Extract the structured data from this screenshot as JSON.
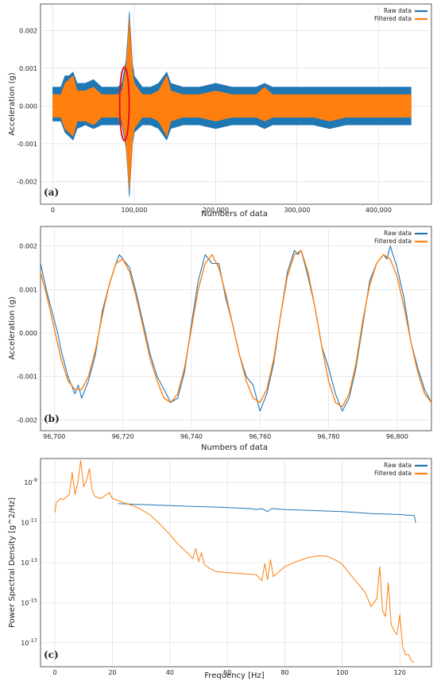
{
  "colors": {
    "raw": "#1f77b4",
    "filtered": "#ff7f0e",
    "highlight": "#e8121a",
    "grid": "#d9d9d9",
    "frame": "#333333"
  },
  "chart_data": [
    {
      "id": "a",
      "panel_label": "(a)",
      "type": "line",
      "title": "",
      "xlabel": "Numbers of data",
      "ylabel": "Acceleration (g)",
      "xlim": [
        -15000,
        465000
      ],
      "ylim": [
        -0.0026,
        0.0027
      ],
      "xticks": [
        0,
        100000,
        200000,
        300000,
        400000
      ],
      "xtick_labels": [
        "0",
        "100,000",
        "200,000",
        "300,000",
        "400,000"
      ],
      "yticks": [
        -0.002,
        -0.001,
        0.0,
        0.001,
        0.002
      ],
      "ytick_labels": [
        "-0.002",
        "-0.001",
        "0.000",
        "0.001",
        "0.002"
      ],
      "grid": true,
      "legend_position": "top-right",
      "annotation": "red ellipse around sample index ~88,000",
      "annotation_x": 88000,
      "annotation_y": [
        -0.00092,
        0.00103
      ],
      "series": [
        {
          "name": "Raw data",
          "color": "#1f77b4",
          "kind": "envelope",
          "x": [
            0,
            10000,
            15000,
            20000,
            25000,
            30000,
            40000,
            50000,
            60000,
            70000,
            80000,
            85000,
            90000,
            92000,
            94000,
            96000,
            98000,
            100000,
            110000,
            120000,
            130000,
            140000,
            145000,
            160000,
            180000,
            200000,
            220000,
            240000,
            250000,
            260000,
            270000,
            280000,
            300000,
            320000,
            340000,
            360000,
            380000,
            400000,
            420000,
            440000
          ],
          "upper": [
            0.0005,
            0.0005,
            0.0008,
            0.0008,
            0.0009,
            0.0006,
            0.0006,
            0.0007,
            0.0005,
            0.0005,
            0.0005,
            0.0006,
            0.0012,
            0.0018,
            0.0025,
            0.0018,
            0.0011,
            0.0008,
            0.0005,
            0.0005,
            0.0006,
            0.0009,
            0.0006,
            0.0005,
            0.0005,
            0.0006,
            0.0005,
            0.0005,
            0.0005,
            0.0006,
            0.0005,
            0.0005,
            0.0005,
            0.0005,
            0.0005,
            0.0005,
            0.0005,
            0.0005,
            0.0005,
            0.0005
          ],
          "lower": [
            -0.0004,
            -0.0004,
            -0.0007,
            -0.0008,
            -0.0009,
            -0.0006,
            -0.0005,
            -0.0006,
            -0.0005,
            -0.0005,
            -0.0005,
            -0.0005,
            -0.0011,
            -0.0017,
            -0.0024,
            -0.0017,
            -0.001,
            -0.0007,
            -0.0005,
            -0.0005,
            -0.0006,
            -0.0009,
            -0.0006,
            -0.0005,
            -0.0005,
            -0.0006,
            -0.0005,
            -0.0005,
            -0.0005,
            -0.0006,
            -0.0005,
            -0.0005,
            -0.0005,
            -0.0005,
            -0.0006,
            -0.0005,
            -0.0005,
            -0.0005,
            -0.0005,
            -0.0005
          ]
        },
        {
          "name": "Filtered data",
          "color": "#ff7f0e",
          "kind": "envelope",
          "x": [
            0,
            10000,
            15000,
            20000,
            25000,
            30000,
            40000,
            50000,
            60000,
            70000,
            80000,
            85000,
            90000,
            92000,
            94000,
            96000,
            98000,
            100000,
            110000,
            120000,
            130000,
            140000,
            145000,
            160000,
            180000,
            200000,
            220000,
            240000,
            250000,
            260000,
            270000,
            280000,
            300000,
            320000,
            340000,
            360000,
            380000,
            400000,
            420000,
            440000
          ],
          "upper": [
            0.0003,
            0.0003,
            0.0006,
            0.0007,
            0.0008,
            0.0004,
            0.0004,
            0.0005,
            0.0003,
            0.0003,
            0.0003,
            0.0004,
            0.001,
            0.0016,
            0.0023,
            0.0016,
            0.0009,
            0.0006,
            0.0003,
            0.0003,
            0.0004,
            0.0008,
            0.0004,
            0.0003,
            0.0003,
            0.0004,
            0.0003,
            0.0003,
            0.0003,
            0.0005,
            0.0003,
            0.0003,
            0.0003,
            0.0003,
            0.0003,
            0.0003,
            0.0003,
            0.0003,
            0.0003,
            0.0003
          ],
          "lower": [
            -0.0003,
            -0.0003,
            -0.0006,
            -0.0007,
            -0.0008,
            -0.0004,
            -0.0004,
            -0.0005,
            -0.0003,
            -0.0003,
            -0.0003,
            -0.0004,
            -0.001,
            -0.0016,
            -0.0022,
            -0.0016,
            -0.0009,
            -0.0006,
            -0.0003,
            -0.0003,
            -0.0004,
            -0.0008,
            -0.0004,
            -0.0003,
            -0.0003,
            -0.0004,
            -0.0003,
            -0.0003,
            -0.0003,
            -0.0004,
            -0.0003,
            -0.0003,
            -0.0003,
            -0.0003,
            -0.0004,
            -0.0003,
            -0.0003,
            -0.0003,
            -0.0003,
            -0.0003
          ]
        }
      ]
    },
    {
      "id": "b",
      "panel_label": "(b)",
      "type": "line",
      "title": "",
      "xlabel": "Numbers of data",
      "ylabel": "Acceleration (g)",
      "xlim": [
        96696,
        96810
      ],
      "ylim": [
        -0.00225,
        0.00245
      ],
      "xticks": [
        96700,
        96720,
        96740,
        96760,
        96780,
        96800
      ],
      "xtick_labels": [
        "96,700",
        "96,720",
        "96,740",
        "96,760",
        "96,780",
        "96,800"
      ],
      "yticks": [
        -0.002,
        -0.001,
        0.0,
        0.001,
        0.002
      ],
      "ytick_labels": [
        "-0.002",
        "-0.001",
        "0.000",
        "0.001",
        "0.002"
      ],
      "grid": true,
      "legend_position": "top-right",
      "series": [
        {
          "name": "Raw data",
          "color": "#1f77b4",
          "x": [
            96696,
            96698,
            96700,
            96701,
            96702,
            96704,
            96706,
            96707,
            96708,
            96710,
            96712,
            96714,
            96716,
            96718,
            96719,
            96720,
            96721,
            96722,
            96724,
            96726,
            96728,
            96730,
            96732,
            96734,
            96736,
            96738,
            96740,
            96742,
            96744,
            96745,
            96746,
            96748,
            96750,
            96752,
            96754,
            96756,
            96758,
            96760,
            96762,
            96764,
            96766,
            96768,
            96770,
            96771,
            96772,
            96774,
            96776,
            96778,
            96780,
            96782,
            96784,
            96786,
            96788,
            96790,
            96792,
            96794,
            96796,
            96797,
            96798,
            96800,
            96802,
            96804,
            96806,
            96808,
            96810
          ],
          "y": [
            0.0016,
            0.0009,
            0.0003,
            0.0,
            -0.0004,
            -0.001,
            -0.0014,
            -0.0012,
            -0.0015,
            -0.0011,
            -0.0005,
            0.0005,
            0.0011,
            0.0016,
            0.0018,
            0.0017,
            0.0016,
            0.0015,
            0.0009,
            0.0002,
            -0.0005,
            -0.001,
            -0.0013,
            -0.0016,
            -0.0015,
            -0.0009,
            0.0002,
            0.0012,
            0.0018,
            0.0017,
            0.0016,
            0.0016,
            0.0008,
            0.0002,
            -0.0005,
            -0.001,
            -0.0012,
            -0.0018,
            -0.0014,
            -0.0007,
            0.0004,
            0.0014,
            0.0019,
            0.0018,
            0.0019,
            0.0013,
            0.0006,
            -0.0003,
            -0.0008,
            -0.0014,
            -0.0018,
            -0.0015,
            -0.0008,
            0.0002,
            0.0012,
            0.0016,
            0.0018,
            0.0017,
            0.002,
            0.0015,
            0.0008,
            -0.0002,
            -0.0008,
            -0.0013,
            -0.0016
          ]
        },
        {
          "name": "Filtered data",
          "color": "#ff7f0e",
          "x": [
            96696,
            96698,
            96700,
            96702,
            96704,
            96706,
            96708,
            96710,
            96712,
            96714,
            96716,
            96718,
            96720,
            96722,
            96724,
            96726,
            96728,
            96730,
            96732,
            96734,
            96736,
            96738,
            96740,
            96742,
            96744,
            96746,
            96748,
            96750,
            96752,
            96754,
            96756,
            96758,
            96760,
            96762,
            96764,
            96766,
            96768,
            96770,
            96772,
            96774,
            96776,
            96778,
            96780,
            96782,
            96784,
            96786,
            96788,
            96790,
            96792,
            96794,
            96796,
            96798,
            96800,
            96802,
            96804,
            96806,
            96808,
            96810
          ],
          "y": [
            0.0014,
            0.0008,
            0.0001,
            -0.0006,
            -0.0011,
            -0.0013,
            -0.0013,
            -0.001,
            -0.0004,
            0.0004,
            0.0011,
            0.0016,
            0.0017,
            0.0014,
            0.0008,
            0.0001,
            -0.0006,
            -0.0011,
            -0.0015,
            -0.0016,
            -0.0014,
            -0.0008,
            0.0001,
            0.001,
            0.0016,
            0.0018,
            0.0015,
            0.0009,
            0.0002,
            -0.0005,
            -0.0011,
            -0.0015,
            -0.0016,
            -0.0013,
            -0.0006,
            0.0004,
            0.0013,
            0.0018,
            0.0019,
            0.0014,
            0.0006,
            -0.0003,
            -0.0011,
            -0.0016,
            -0.0017,
            -0.0014,
            -0.0007,
            0.0003,
            0.0011,
            0.0016,
            0.0018,
            0.0017,
            0.0013,
            0.0006,
            -0.0002,
            -0.0009,
            -0.0014,
            -0.0016
          ]
        }
      ]
    },
    {
      "id": "c",
      "panel_label": "(c)",
      "type": "line",
      "title": "",
      "xlabel": "Frequency [Hz]",
      "ylabel": "Power Spectral Density [g^2/Hz]",
      "yscale": "log",
      "xlim": [
        -5,
        131
      ],
      "ylim_exponent": [
        -18.2,
        -7.8
      ],
      "xticks": [
        0,
        20,
        40,
        60,
        80,
        100,
        120
      ],
      "xtick_labels": [
        "0",
        "20",
        "40",
        "60",
        "80",
        "100",
        "120"
      ],
      "ytick_exponents": [
        -9,
        -11,
        -13,
        -15,
        -17
      ],
      "ytick_base": "10",
      "grid": true,
      "legend_position": "top-right",
      "series": [
        {
          "name": "Raw data",
          "color": "#1f77b4",
          "x": [
            22,
            30,
            40,
            50,
            55,
            60,
            68,
            70,
            72,
            74,
            75,
            76,
            80,
            90,
            100,
            110,
            120,
            125,
            125.5
          ],
          "log10_y": [
            -10.05,
            -10.1,
            -10.15,
            -10.2,
            -10.22,
            -10.25,
            -10.3,
            -10.35,
            -10.3,
            -10.45,
            -10.33,
            -10.3,
            -10.35,
            -10.4,
            -10.45,
            -10.55,
            -10.6,
            -10.65,
            -11.0
          ]
        },
        {
          "name": "Filtered data",
          "color": "#ff7f0e",
          "x": [
            0,
            0.5,
            2,
            3,
            5,
            6,
            7,
            8,
            9,
            10,
            11,
            12,
            13,
            14,
            16,
            18,
            19,
            20,
            22,
            25,
            28,
            30,
            33,
            36,
            40,
            43,
            46,
            48,
            49,
            50,
            51,
            52,
            53,
            54,
            56,
            60,
            65,
            70,
            72,
            73,
            74,
            75,
            76,
            78,
            80,
            84,
            88,
            92,
            95,
            98,
            100,
            104,
            108,
            110,
            112,
            113,
            114,
            115,
            116,
            117,
            118,
            119,
            120,
            121,
            122,
            123,
            124,
            125
          ],
          "log10_y": [
            -10.5,
            -10.0,
            -9.8,
            -9.85,
            -9.6,
            -8.5,
            -9.6,
            -9.0,
            -7.9,
            -9.2,
            -8.9,
            -8.3,
            -9.4,
            -9.7,
            -9.8,
            -9.6,
            -9.5,
            -9.8,
            -9.9,
            -10.05,
            -10.2,
            -10.35,
            -10.6,
            -11.0,
            -11.6,
            -12.1,
            -12.5,
            -12.8,
            -12.3,
            -12.95,
            -12.5,
            -13.1,
            -13.2,
            -13.3,
            -13.45,
            -13.5,
            -13.55,
            -13.6,
            -13.9,
            -13.05,
            -13.85,
            -12.85,
            -13.7,
            -13.45,
            -13.2,
            -12.95,
            -12.75,
            -12.65,
            -12.7,
            -12.9,
            -13.1,
            -13.8,
            -14.5,
            -15.2,
            -14.8,
            -13.2,
            -15.4,
            -15.7,
            -14.0,
            -16.1,
            -16.4,
            -16.6,
            -15.6,
            -17.2,
            -17.6,
            -17.6,
            -17.9,
            -18.0
          ]
        }
      ]
    }
  ]
}
